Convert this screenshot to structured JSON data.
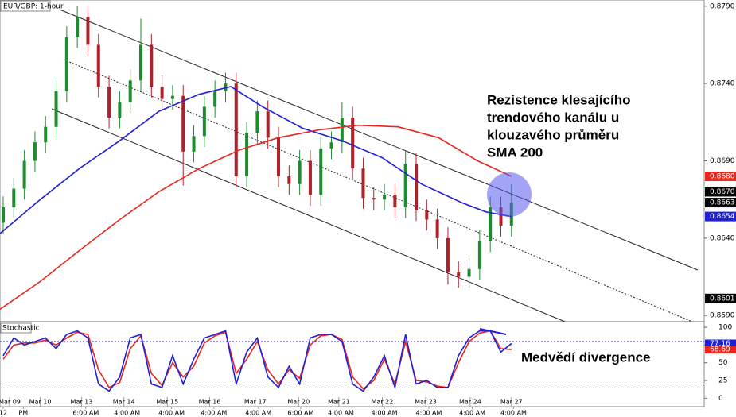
{
  "chart_data": {
    "type": "candlestick",
    "title": "EUR/GBP: 1-hour",
    "x": [
      0,
      1,
      2,
      3,
      4,
      5,
      6,
      7,
      8,
      9,
      10,
      11,
      12,
      13,
      14,
      15,
      16,
      17,
      18,
      19,
      20,
      21,
      22,
      23,
      24,
      25,
      26,
      27,
      28,
      29,
      30,
      31,
      32,
      33,
      34,
      35,
      36,
      37,
      38,
      39,
      40,
      41,
      42,
      43,
      44,
      45,
      46,
      47,
      48
    ],
    "open": [
      0.865,
      0.866,
      0.8672,
      0.869,
      0.8702,
      0.8712,
      0.8735,
      0.877,
      0.8783,
      0.8765,
      0.8738,
      0.8718,
      0.8728,
      0.8742,
      0.8765,
      0.8738,
      0.873,
      0.8732,
      0.8696,
      0.8706,
      0.8725,
      0.8735,
      0.874,
      0.868,
      0.8708,
      0.8722,
      0.8705,
      0.868,
      0.8675,
      0.869,
      0.8668,
      0.8698,
      0.8702,
      0.8718,
      0.8685,
      0.8666,
      0.8665,
      0.8668,
      0.866,
      0.8688,
      0.8658,
      0.8652,
      0.864,
      0.8618,
      0.8615,
      0.862,
      0.8638,
      0.866,
      0.8648
    ],
    "high": [
      0.8667,
      0.8679,
      0.8697,
      0.8709,
      0.8719,
      0.8742,
      0.8777,
      0.879,
      0.879,
      0.8772,
      0.8745,
      0.8735,
      0.8749,
      0.8782,
      0.8772,
      0.8745,
      0.8739,
      0.8739,
      0.8713,
      0.8732,
      0.8742,
      0.8747,
      0.8747,
      0.8715,
      0.8729,
      0.8729,
      0.8712,
      0.8687,
      0.8697,
      0.8697,
      0.8705,
      0.8709,
      0.8728,
      0.8725,
      0.8692,
      0.8673,
      0.8675,
      0.8675,
      0.8697,
      0.8695,
      0.8665,
      0.8659,
      0.8647,
      0.8625,
      0.8627,
      0.8645,
      0.8667,
      0.8667,
      0.8675
    ],
    "low": [
      0.8643,
      0.8653,
      0.8665,
      0.8683,
      0.8695,
      0.8705,
      0.8728,
      0.8763,
      0.8758,
      0.8731,
      0.8711,
      0.8711,
      0.8721,
      0.8735,
      0.8731,
      0.8723,
      0.8723,
      0.8674,
      0.8689,
      0.8699,
      0.8718,
      0.8728,
      0.8673,
      0.8673,
      0.8701,
      0.8698,
      0.8673,
      0.8668,
      0.8668,
      0.8661,
      0.8661,
      0.8691,
      0.8695,
      0.8678,
      0.8659,
      0.8658,
      0.8658,
      0.8653,
      0.8653,
      0.8651,
      0.8645,
      0.8633,
      0.861,
      0.8608,
      0.8608,
      0.8613,
      0.8631,
      0.8641,
      0.8641
    ],
    "close": [
      0.866,
      0.8672,
      0.869,
      0.8702,
      0.8712,
      0.8735,
      0.877,
      0.8783,
      0.8765,
      0.8738,
      0.8718,
      0.8728,
      0.8742,
      0.8765,
      0.8738,
      0.873,
      0.8732,
      0.8696,
      0.8706,
      0.8725,
      0.8735,
      0.874,
      0.868,
      0.8708,
      0.8722,
      0.8705,
      0.868,
      0.8675,
      0.869,
      0.8668,
      0.8698,
      0.8702,
      0.8718,
      0.8685,
      0.8666,
      0.8665,
      0.8668,
      0.866,
      0.8688,
      0.8658,
      0.8652,
      0.864,
      0.8618,
      0.8615,
      0.862,
      0.8638,
      0.866,
      0.8648,
      0.8663
    ],
    "up_color": "#1e8c2e",
    "down_color": "#b0202a",
    "sma": [
      {
        "color": "#1f1fd6",
        "x": [
          -0.3,
          3.5,
          7.2,
          11.0,
          14.7,
          18.5,
          21.5,
          24.5,
          28.3,
          32.0,
          35.8,
          39.5,
          43.3,
          45.6,
          48.0
        ],
        "values": [
          0.8643,
          0.8665,
          0.8685,
          0.8703,
          0.8722,
          0.8733,
          0.8738,
          0.8725,
          0.8711,
          0.8703,
          0.8692,
          0.8675,
          0.8663,
          0.8657,
          0.8654
        ]
      },
      {
        "color": "#e8261e",
        "x": [
          -0.3,
          3.5,
          7.2,
          11.0,
          14.7,
          18.5,
          22.3,
          26.0,
          29.8,
          33.5,
          37.3,
          41.1,
          44.8,
          48.0
        ],
        "values": [
          0.8594,
          0.8612,
          0.8632,
          0.8652,
          0.867,
          0.8685,
          0.8697,
          0.8705,
          0.871,
          0.8713,
          0.8712,
          0.8705,
          0.869,
          0.868
        ]
      }
    ],
    "xlim": [
      -0.3,
      66.2
    ],
    "ylim": [
      0.8586,
      0.8794
    ],
    "yticks": [
      {
        "value": 0.879,
        "label": "0.8790"
      },
      {
        "value": 0.874,
        "label": "0.8740"
      },
      {
        "value": 0.869,
        "label": "0.8690"
      },
      {
        "value": 0.864,
        "label": "0.8640"
      },
      {
        "value": 0.859,
        "label": "0.8590"
      }
    ],
    "price_labels": [
      {
        "value": 0.868,
        "label": "0.8680",
        "color": "#e8261e"
      },
      {
        "value": 0.867,
        "label": "0.8670",
        "color": "#000000"
      },
      {
        "value": 0.8663,
        "label": "0.8663",
        "color": "#000000"
      },
      {
        "value": 0.8654,
        "label": "0.8654",
        "color": "#1f1fd6"
      },
      {
        "value": 0.8601,
        "label": "0.8601",
        "color": "#000000"
      }
    ],
    "xticks": [
      {
        "value": 0.6,
        "label": "Mar 09"
      },
      {
        "value": 3.5,
        "label": "Mar 10"
      },
      {
        "value": 7.4,
        "label": "Mar 13"
      },
      {
        "value": 11.4,
        "label": "Mar 14"
      },
      {
        "value": 15.5,
        "label": "Mar 15"
      },
      {
        "value": 19.5,
        "label": "Mar 16"
      },
      {
        "value": 23.8,
        "label": "Mar 17"
      },
      {
        "value": 27.9,
        "label": "Mar 20"
      },
      {
        "value": 31.7,
        "label": "Mar 21"
      },
      {
        "value": 35.8,
        "label": "Mar 22"
      },
      {
        "value": 39.9,
        "label": "Mar 23"
      },
      {
        "value": 44.1,
        "label": "Mar 24"
      },
      {
        "value": 48.0,
        "label": "Mar 27"
      }
    ],
    "xticks_time": [
      {
        "value": 0.0,
        "label": "12"
      },
      {
        "value": 1.9,
        "label": "PM"
      },
      {
        "value": 7.8,
        "label": "6:00 AM"
      },
      {
        "value": 11.7,
        "label": "4:00 AM"
      },
      {
        "value": 15.9,
        "label": "4:00 AM"
      },
      {
        "value": 19.9,
        "label": "4:00 AM"
      },
      {
        "value": 24.1,
        "label": "4:00 AM"
      },
      {
        "value": 28.1,
        "label": "6:00 AM"
      },
      {
        "value": 31.9,
        "label": "4:00 AM"
      },
      {
        "value": 36.0,
        "label": "4:00 AM"
      },
      {
        "value": 40.2,
        "label": "4:00 AM"
      },
      {
        "value": 44.3,
        "label": "4:00 AM"
      },
      {
        "value": 48.2,
        "label": "4:00 AM"
      }
    ],
    "annotation": [
      "Rezistence klesajícího",
      "trendového kanálu u",
      "klouzavého průměru",
      "SMA 200"
    ],
    "stochastic": {
      "title": "Stochastic",
      "annotation": "Medvědí divergence",
      "k": {
        "color": "#1f1fd6",
        "values": [
          60,
          85,
          75,
          80,
          85,
          70,
          90,
          95,
          85,
          20,
          10,
          30,
          85,
          90,
          20,
          15,
          60,
          20,
          55,
          85,
          90,
          95,
          20,
          65,
          85,
          30,
          15,
          45,
          20,
          85,
          90,
          90,
          80,
          20,
          10,
          30,
          60,
          15,
          90,
          20,
          25,
          15,
          15,
          60,
          85,
          95,
          95,
          65,
          77.16
        ]
      },
      "d": {
        "color": "#e8261e",
        "values": [
          55,
          75,
          78,
          78,
          82,
          75,
          85,
          93,
          90,
          40,
          15,
          22,
          70,
          88,
          35,
          18,
          50,
          30,
          45,
          78,
          88,
          93,
          35,
          55,
          80,
          40,
          20,
          40,
          28,
          75,
          88,
          90,
          83,
          30,
          13,
          25,
          55,
          20,
          80,
          25,
          23,
          17,
          15,
          50,
          80,
          92,
          95,
          70,
          68.69
        ]
      },
      "levels": [
        {
          "value": 80,
          "color": "#1f1fd6"
        },
        {
          "value": 20,
          "color": "#e8261e"
        }
      ],
      "ylim": [
        -12,
        108
      ],
      "yticks": [
        100,
        75,
        50,
        25,
        0
      ],
      "last_values": [
        {
          "value": 77.16,
          "color": "#1f1fd6"
        },
        {
          "value": 68.69,
          "color": "#e8261e"
        }
      ]
    }
  }
}
